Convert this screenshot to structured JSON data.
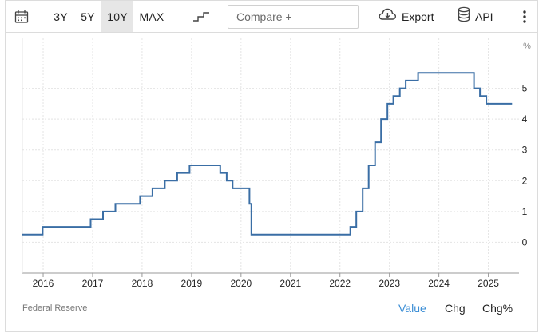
{
  "toolbar": {
    "ranges": [
      "3Y",
      "5Y",
      "10Y",
      "MAX"
    ],
    "active_range": "10Y",
    "compare_placeholder": "Compare +",
    "export_label": "Export",
    "api_label": "API",
    "icons": {
      "calendar": "calendar-icon",
      "chart_type": "step-line-icon",
      "export": "cloud-download-icon",
      "api": "database-icon",
      "more": "kebab-menu-icon"
    }
  },
  "chart_data": {
    "type": "line",
    "line_style": "step",
    "y_unit": "%",
    "y_ticks": [
      "0",
      "1",
      "2",
      "3",
      "4",
      "5"
    ],
    "x_ticks": [
      "2016",
      "2017",
      "2018",
      "2019",
      "2020",
      "2021",
      "2022",
      "2023",
      "2024",
      "2025"
    ],
    "ylim": [
      -1,
      6
    ],
    "grid": true,
    "series": [
      {
        "color": "#3a6ea5",
        "points": [
          [
            2015.58,
            0.25
          ],
          [
            2015.99,
            0.25
          ],
          [
            2015.99,
            0.5
          ],
          [
            2016.96,
            0.5
          ],
          [
            2016.96,
            0.75
          ],
          [
            2017.21,
            0.75
          ],
          [
            2017.21,
            1.0
          ],
          [
            2017.46,
            1.0
          ],
          [
            2017.46,
            1.25
          ],
          [
            2017.96,
            1.25
          ],
          [
            2017.96,
            1.5
          ],
          [
            2018.21,
            1.5
          ],
          [
            2018.21,
            1.75
          ],
          [
            2018.46,
            1.75
          ],
          [
            2018.46,
            2.0
          ],
          [
            2018.71,
            2.0
          ],
          [
            2018.71,
            2.25
          ],
          [
            2018.96,
            2.25
          ],
          [
            2018.96,
            2.5
          ],
          [
            2019.58,
            2.5
          ],
          [
            2019.58,
            2.25
          ],
          [
            2019.71,
            2.25
          ],
          [
            2019.71,
            2.0
          ],
          [
            2019.83,
            2.0
          ],
          [
            2019.83,
            1.75
          ],
          [
            2020.17,
            1.75
          ],
          [
            2020.17,
            1.25
          ],
          [
            2020.21,
            1.25
          ],
          [
            2020.21,
            0.25
          ],
          [
            2022.21,
            0.25
          ],
          [
            2022.21,
            0.5
          ],
          [
            2022.33,
            0.5
          ],
          [
            2022.33,
            1.0
          ],
          [
            2022.46,
            1.0
          ],
          [
            2022.46,
            1.75
          ],
          [
            2022.58,
            1.75
          ],
          [
            2022.58,
            2.5
          ],
          [
            2022.71,
            2.5
          ],
          [
            2022.71,
            3.25
          ],
          [
            2022.83,
            3.25
          ],
          [
            2022.83,
            4.0
          ],
          [
            2022.96,
            4.0
          ],
          [
            2022.96,
            4.5
          ],
          [
            2023.08,
            4.5
          ],
          [
            2023.08,
            4.75
          ],
          [
            2023.21,
            4.75
          ],
          [
            2023.21,
            5.0
          ],
          [
            2023.33,
            5.0
          ],
          [
            2023.33,
            5.25
          ],
          [
            2023.58,
            5.25
          ],
          [
            2023.58,
            5.5
          ],
          [
            2024.71,
            5.5
          ],
          [
            2024.71,
            5.0
          ],
          [
            2024.83,
            5.0
          ],
          [
            2024.83,
            4.75
          ],
          [
            2024.96,
            4.75
          ],
          [
            2024.96,
            4.5
          ],
          [
            2025.48,
            4.5
          ]
        ]
      }
    ]
  },
  "footer": {
    "source": "Federal Reserve",
    "tabs": [
      "Value",
      "Chg",
      "Chg%"
    ],
    "active_tab": "Value"
  }
}
